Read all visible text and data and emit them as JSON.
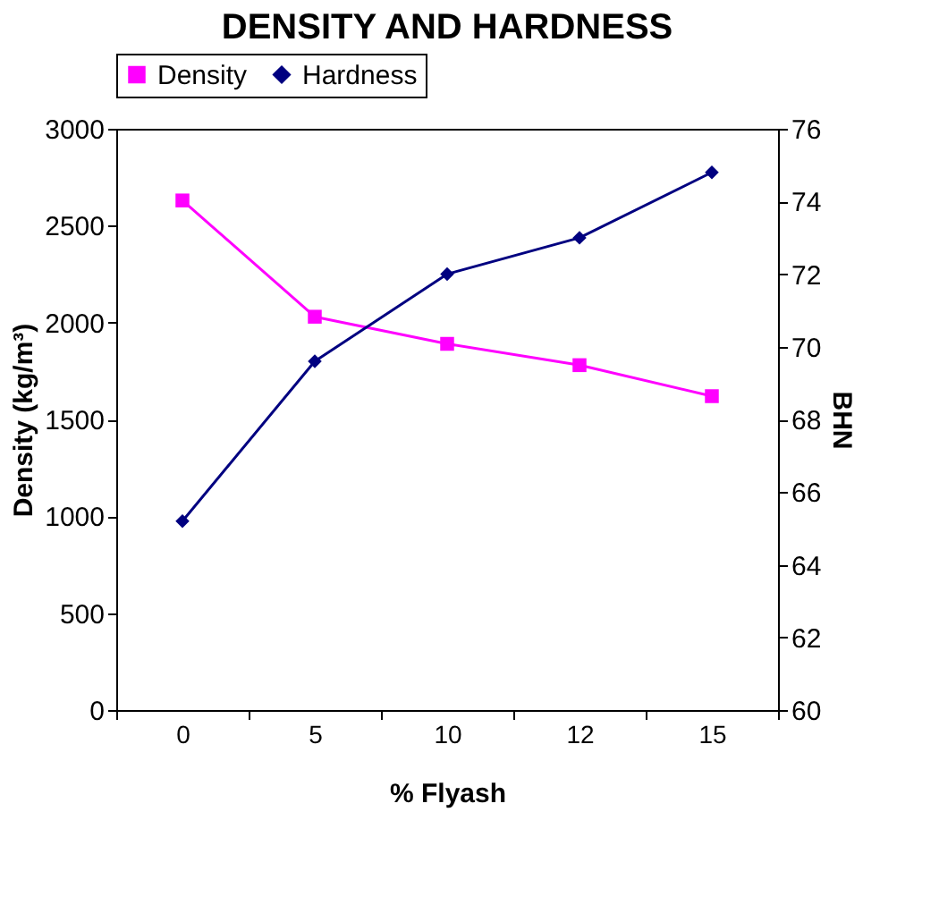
{
  "chart_data": {
    "type": "line",
    "title": "DENSITY AND HARDNESS",
    "xlabel": "% Flyash",
    "ylabel": "Density (kg/m³)",
    "y2label": "BHN",
    "categories": [
      "0",
      "5",
      "10",
      "12",
      "15"
    ],
    "series": [
      {
        "name": "Density",
        "color": "#ff00ff",
        "marker": "square",
        "values": [
          2630,
          2030,
          1890,
          1780,
          1620
        ]
      },
      {
        "name": "Hardness",
        "color": "#000080",
        "marker": "diamond",
        "axis": "y2",
        "values": [
          65.2,
          69.6,
          72.0,
          73.0,
          74.8
        ]
      }
    ],
    "ylim": [
      0,
      3000
    ],
    "yticks": [
      0,
      500,
      1000,
      1500,
      2000,
      2500,
      3000
    ],
    "y2lim": [
      60,
      76
    ],
    "y2ticks": [
      60,
      62,
      64,
      66,
      68,
      70,
      72,
      74,
      76
    ],
    "grid": false,
    "legend": "top",
    "line_style": "solid"
  }
}
